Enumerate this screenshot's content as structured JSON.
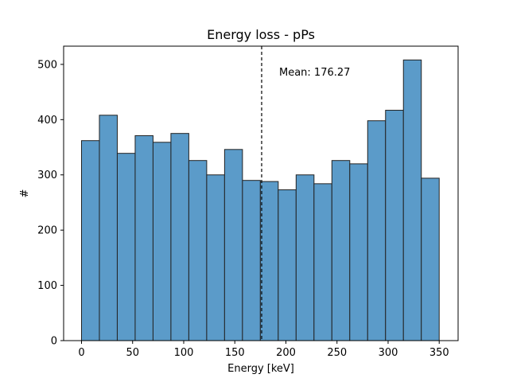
{
  "chart_data": {
    "type": "bar",
    "title": "Energy loss - pPs",
    "xlabel": "Energy [keV]",
    "ylabel": "#",
    "xlim": [
      -17.5,
      368.5
    ],
    "ylim": [
      0,
      533
    ],
    "xticks": [
      0,
      50,
      100,
      150,
      200,
      250,
      300,
      350
    ],
    "yticks": [
      0,
      100,
      200,
      300,
      400,
      500
    ],
    "bin_edges": [
      0,
      17.5,
      35,
      52.5,
      70,
      87.5,
      105,
      122.5,
      140,
      157.5,
      175,
      192.5,
      210,
      227.5,
      245,
      262.5,
      280,
      297.5,
      315,
      332.5,
      350
    ],
    "values": [
      362,
      408,
      339,
      371,
      359,
      375,
      326,
      300,
      346,
      290,
      288,
      273,
      300,
      284,
      326,
      320,
      398,
      417,
      508,
      294
    ],
    "bar_color": "#5b9bc9",
    "edge_color": "#222222",
    "mean": 176.27,
    "mean_line_style": "dashed",
    "annotation": "Mean: 176.27",
    "grid": false
  }
}
